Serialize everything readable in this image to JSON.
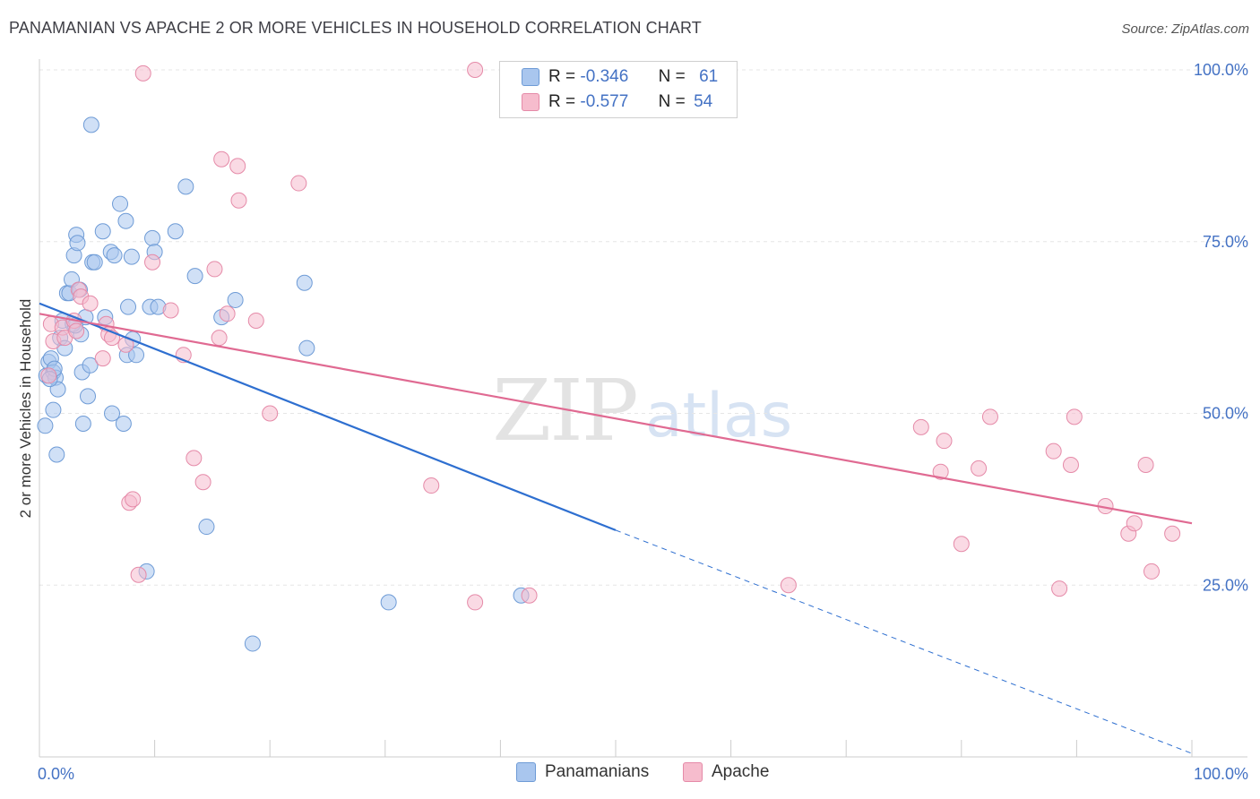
{
  "header": {
    "title": "PANAMANIAN VS APACHE 2 OR MORE VEHICLES IN HOUSEHOLD CORRELATION CHART",
    "source": "Source: ZipAtlas.com"
  },
  "watermark": {
    "zip": "ZIP",
    "atlas": "atlas"
  },
  "colors": {
    "blue_fill": "#a9c6ee",
    "blue_stroke": "#6e9bd6",
    "blue_line": "#2e6fd0",
    "pink_fill": "#f6bccd",
    "pink_stroke": "#e58aa8",
    "pink_line": "#e06a92",
    "axis_label": "#4472c4",
    "grid": "#e6e6e6"
  },
  "legend": {
    "rows": [
      {
        "r_label": "R =",
        "r_value": "-0.346",
        "n_label": "N =",
        "n_value": "61",
        "color": "#a9c6ee",
        "stroke": "#6e9bd6"
      },
      {
        "r_label": "R =",
        "r_value": "-0.577",
        "n_label": "N =",
        "n_value": "54",
        "color": "#f6bccd",
        "stroke": "#e58aa8"
      }
    ]
  },
  "bottom_legend": [
    {
      "label": "Panamanians",
      "color": "#a9c6ee",
      "stroke": "#6e9bd6"
    },
    {
      "label": "Apache",
      "color": "#f6bccd",
      "stroke": "#e58aa8"
    }
  ],
  "chart_data": {
    "type": "scatter",
    "title": "PANAMANIAN VS APACHE 2 OR MORE VEHICLES IN HOUSEHOLD CORRELATION CHART",
    "xlabel": "",
    "ylabel": "2 or more Vehicles in Household",
    "xlim": [
      0,
      100
    ],
    "ylim": [
      0,
      100
    ],
    "x_tick_labels": [
      "0.0%",
      "100.0%"
    ],
    "y_tick_labels": [
      "25.0%",
      "50.0%",
      "75.0%",
      "100.0%"
    ],
    "y_ticks": [
      25,
      50,
      75,
      100
    ],
    "series": [
      {
        "name": "Panamanians",
        "r": -0.346,
        "n": 61,
        "trend": {
          "x0": 0,
          "y0": 66.0,
          "x1": 50,
          "y1": 33.0,
          "dashed_to_x": 100,
          "dashed_to_y": 0.5
        },
        "points": [
          [
            0.5,
            48.2
          ],
          [
            0.6,
            55.5
          ],
          [
            0.8,
            57.5
          ],
          [
            1.0,
            58.0
          ],
          [
            1.2,
            56.0
          ],
          [
            1.4,
            55.2
          ],
          [
            1.5,
            44.0
          ],
          [
            1.2,
            50.5
          ],
          [
            1.6,
            53.5
          ],
          [
            1.8,
            61.0
          ],
          [
            2.0,
            63.5
          ],
          [
            2.2,
            59.5
          ],
          [
            2.4,
            67.5
          ],
          [
            2.6,
            67.5
          ],
          [
            2.8,
            69.5
          ],
          [
            3.0,
            73.0
          ],
          [
            3.2,
            76.0
          ],
          [
            3.3,
            74.8
          ],
          [
            3.5,
            68.0
          ],
          [
            3.6,
            61.5
          ],
          [
            3.7,
            56.0
          ],
          [
            3.8,
            48.5
          ],
          [
            4.0,
            64.0
          ],
          [
            4.2,
            52.5
          ],
          [
            4.4,
            57.0
          ],
          [
            4.5,
            92.0
          ],
          [
            4.6,
            72.0
          ],
          [
            4.8,
            72.0
          ],
          [
            5.5,
            76.5
          ],
          [
            5.7,
            64.0
          ],
          [
            6.2,
            73.5
          ],
          [
            6.3,
            50.0
          ],
          [
            6.5,
            73.0
          ],
          [
            7.0,
            80.5
          ],
          [
            7.3,
            48.5
          ],
          [
            7.5,
            78.0
          ],
          [
            7.6,
            58.5
          ],
          [
            7.7,
            65.5
          ],
          [
            8.0,
            72.8
          ],
          [
            8.1,
            60.8
          ],
          [
            8.4,
            58.5
          ],
          [
            9.3,
            27.0
          ],
          [
            9.6,
            65.5
          ],
          [
            9.8,
            75.5
          ],
          [
            10.0,
            73.5
          ],
          [
            10.3,
            65.5
          ],
          [
            11.8,
            76.5
          ],
          [
            12.7,
            83.0
          ],
          [
            13.5,
            70.0
          ],
          [
            14.5,
            33.5
          ],
          [
            15.8,
            64.0
          ],
          [
            17.0,
            66.5
          ],
          [
            18.5,
            16.5
          ],
          [
            23.0,
            69.0
          ],
          [
            23.2,
            59.5
          ],
          [
            30.3,
            22.5
          ],
          [
            41.8,
            23.5
          ],
          [
            1.3,
            56.5
          ],
          [
            0.9,
            55.0
          ],
          [
            2.9,
            63.0
          ],
          [
            3.1,
            62.8
          ]
        ]
      },
      {
        "name": "Apache",
        "r": -0.577,
        "n": 54,
        "trend": {
          "x0": 0,
          "y0": 64.5,
          "x1": 100,
          "y1": 34.0
        },
        "points": [
          [
            0.8,
            55.5
          ],
          [
            1.0,
            63.0
          ],
          [
            1.2,
            60.5
          ],
          [
            2.0,
            62.5
          ],
          [
            2.2,
            61.0
          ],
          [
            3.0,
            63.5
          ],
          [
            3.2,
            62.0
          ],
          [
            3.4,
            68.0
          ],
          [
            3.6,
            67.0
          ],
          [
            4.4,
            66.0
          ],
          [
            5.5,
            58.0
          ],
          [
            5.8,
            63.0
          ],
          [
            6.0,
            61.5
          ],
          [
            6.3,
            61.0
          ],
          [
            7.5,
            60.0
          ],
          [
            7.8,
            37.0
          ],
          [
            8.1,
            37.5
          ],
          [
            8.6,
            26.5
          ],
          [
            9.0,
            99.5
          ],
          [
            9.8,
            72.0
          ],
          [
            11.4,
            65.0
          ],
          [
            12.5,
            58.5
          ],
          [
            13.4,
            43.5
          ],
          [
            14.2,
            40.0
          ],
          [
            15.2,
            71.0
          ],
          [
            15.6,
            61.0
          ],
          [
            15.8,
            87.0
          ],
          [
            16.3,
            64.5
          ],
          [
            17.2,
            86.0
          ],
          [
            17.3,
            81.0
          ],
          [
            18.8,
            63.5
          ],
          [
            20.0,
            50.0
          ],
          [
            22.5,
            83.5
          ],
          [
            34.0,
            39.5
          ],
          [
            37.8,
            100.0
          ],
          [
            37.8,
            22.5
          ],
          [
            42.5,
            23.5
          ],
          [
            65.0,
            25.0
          ],
          [
            76.5,
            48.0
          ],
          [
            78.2,
            41.5
          ],
          [
            78.5,
            46.0
          ],
          [
            80.0,
            31.0
          ],
          [
            81.5,
            42.0
          ],
          [
            82.5,
            49.5
          ],
          [
            88.0,
            44.5
          ],
          [
            88.5,
            24.5
          ],
          [
            89.5,
            42.5
          ],
          [
            89.8,
            49.5
          ],
          [
            92.5,
            36.5
          ],
          [
            94.5,
            32.5
          ],
          [
            95.0,
            34.0
          ],
          [
            96.0,
            42.5
          ],
          [
            96.5,
            27.0
          ],
          [
            98.3,
            32.5
          ]
        ]
      }
    ]
  }
}
